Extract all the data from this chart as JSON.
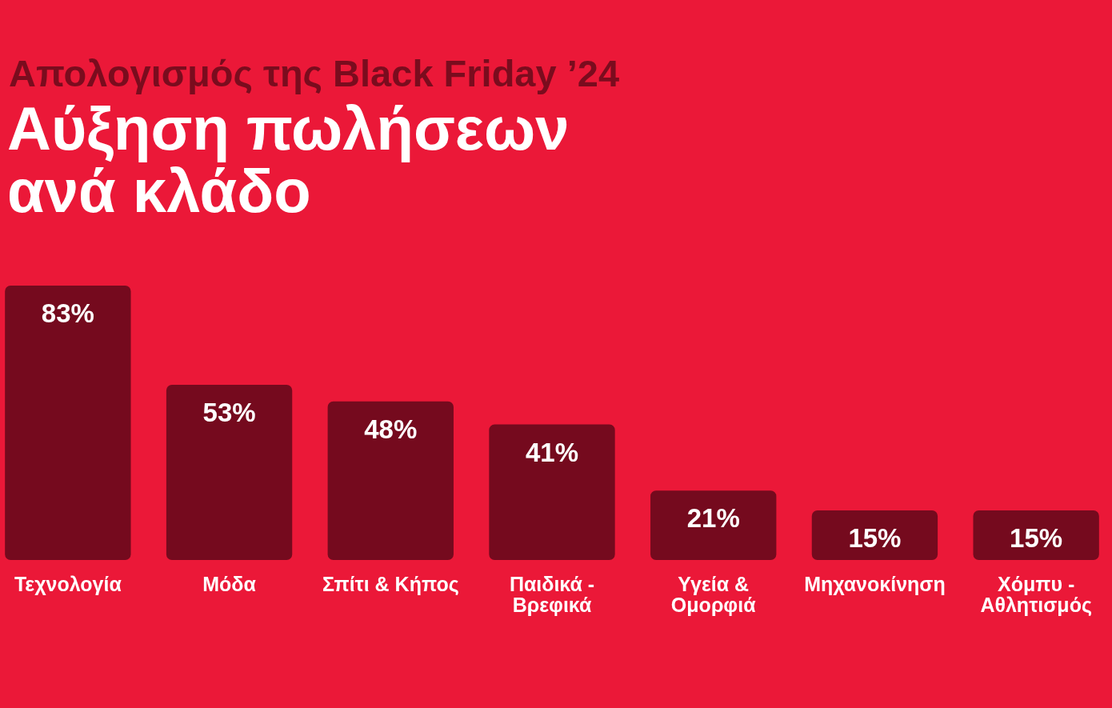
{
  "chart_data": {
    "type": "bar",
    "title": "Αύξηση πωλήσεων ανά κλάδο",
    "subtitle": "Απολογισμός της Black Friday ’24",
    "categories": [
      "Τεχνολογία",
      "Μόδα",
      "Σπίτι & Κήπος",
      "Παιδικά - Βρεφικά",
      "Υγεία & Ομορφιά",
      "Μηχανοκίνηση",
      "Χόμπυ - Αθλητισμός"
    ],
    "values": [
      83,
      53,
      48,
      41,
      21,
      15,
      15
    ],
    "value_labels": [
      "83%",
      "53%",
      "48%",
      "41%",
      "21%",
      "15%",
      "15%"
    ],
    "color": "#750a1e",
    "tick_labels": "x"
  }
}
